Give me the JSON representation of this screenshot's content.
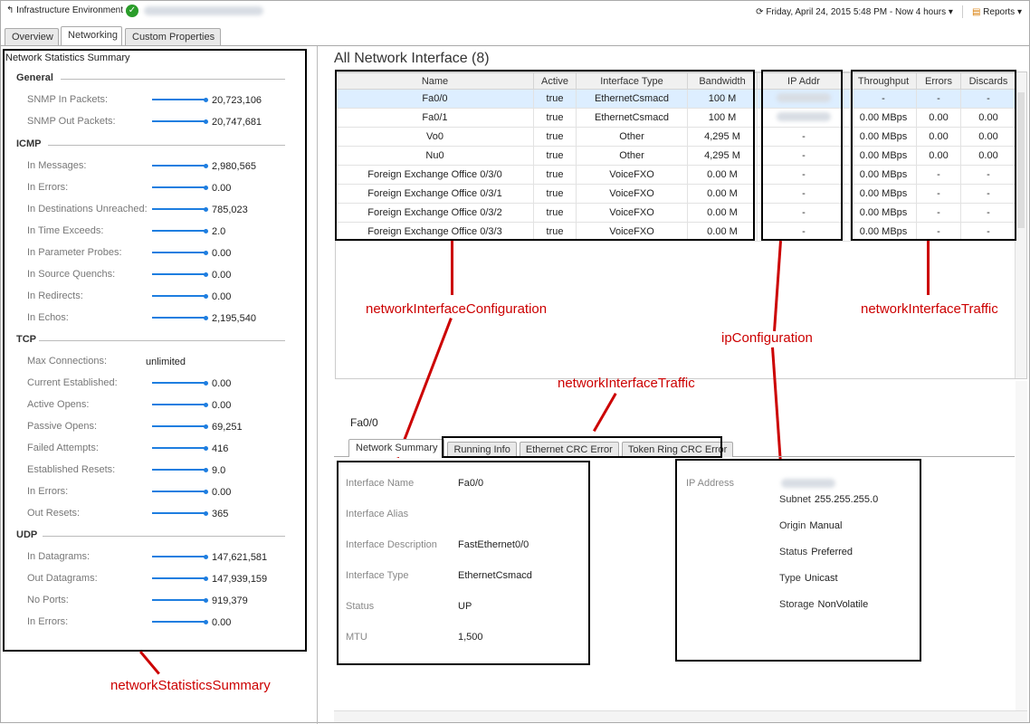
{
  "header": {
    "breadcrumb": "Infrastructure Environment",
    "time": "Friday, April 24, 2015 5:48 PM - Now 4 hours",
    "reports": "Reports"
  },
  "tabs": [
    "Overview",
    "Networking",
    "Custom Properties"
  ],
  "stats": {
    "title": "Network Statistics Summary",
    "sections": [
      {
        "name": "General",
        "rows": [
          [
            "SNMP In Packets:",
            "20,723,106",
            true
          ],
          [
            "SNMP Out Packets:",
            "20,747,681",
            true
          ]
        ]
      },
      {
        "name": "ICMP",
        "rows": [
          [
            "In Messages:",
            "2,980,565",
            true
          ],
          [
            "In Errors:",
            "0.00",
            true
          ],
          [
            "In Destinations Unreached:",
            "785,023",
            true
          ],
          [
            "In Time Exceeds:",
            "2.0",
            true
          ],
          [
            "In Parameter Probes:",
            "0.00",
            true
          ],
          [
            "In Source Quenchs:",
            "0.00",
            true
          ],
          [
            "In Redirects:",
            "0.00",
            true
          ],
          [
            "In Echos:",
            "2,195,540",
            true
          ]
        ]
      },
      {
        "name": "TCP",
        "rows": [
          [
            "Max Connections:",
            "unlimited",
            false
          ],
          [
            "Current Established:",
            "0.00",
            true
          ],
          [
            "Active Opens:",
            "0.00",
            true
          ],
          [
            "Passive Opens:",
            "69,251",
            true
          ],
          [
            "Failed Attempts:",
            "416",
            true
          ],
          [
            "Established Resets:",
            "9.0",
            true
          ],
          [
            "In Errors:",
            "0.00",
            true
          ],
          [
            "Out Resets:",
            "365",
            true
          ]
        ]
      },
      {
        "name": "UDP",
        "rows": [
          [
            "In Datagrams:",
            "147,621,581",
            true
          ],
          [
            "Out Datagrams:",
            "147,939,159",
            true
          ],
          [
            "No Ports:",
            "919,379",
            true
          ],
          [
            "In Errors:",
            "0.00",
            true
          ]
        ]
      }
    ]
  },
  "interfaces": {
    "title": "All Network Interface (8)",
    "columns": [
      "Name",
      "Active",
      "Interface Type",
      "Bandwidth",
      "IP Addr",
      "Throughput",
      "Errors",
      "Discards"
    ],
    "rows": [
      [
        "Fa0/0",
        "true",
        "EthernetCsmacd",
        "100 M",
        "",
        "-",
        "-",
        "-"
      ],
      [
        "Fa0/1",
        "true",
        "EthernetCsmacd",
        "100 M",
        "",
        "0.00 MBps",
        "0.00",
        "0.00"
      ],
      [
        "Vo0",
        "true",
        "Other",
        "4,295 M",
        "-",
        "0.00 MBps",
        "0.00",
        "0.00"
      ],
      [
        "Nu0",
        "true",
        "Other",
        "4,295 M",
        "-",
        "0.00 MBps",
        "0.00",
        "0.00"
      ],
      [
        "Foreign Exchange Office 0/3/0",
        "true",
        "VoiceFXO",
        "0.00 M",
        "-",
        "0.00 MBps",
        "-",
        "-"
      ],
      [
        "Foreign Exchange Office 0/3/1",
        "true",
        "VoiceFXO",
        "0.00 M",
        "-",
        "0.00 MBps",
        "-",
        "-"
      ],
      [
        "Foreign Exchange Office 0/3/2",
        "true",
        "VoiceFXO",
        "0.00 M",
        "-",
        "0.00 MBps",
        "-",
        "-"
      ],
      [
        "Foreign Exchange Office 0/3/3",
        "true",
        "VoiceFXO",
        "0.00 M",
        "-",
        "0.00 MBps",
        "-",
        "-"
      ]
    ]
  },
  "detail": {
    "title": "Fa0/0",
    "tabs": [
      "Network Summary",
      "Running Info",
      "Ethernet CRC Error",
      "Token Ring CRC Error"
    ],
    "summary": [
      [
        "Interface Name",
        "Fa0/0"
      ],
      [
        "Interface Alias",
        ""
      ],
      [
        "Interface Description",
        "FastEthernet0/0"
      ],
      [
        "Interface Type",
        "EthernetCsmacd"
      ],
      [
        "Status",
        "UP"
      ],
      [
        "MTU",
        "1,500"
      ]
    ],
    "ip": {
      "label": "IP Address",
      "rows": [
        [
          "Subnet",
          "255.255.255.0"
        ],
        [
          "Origin",
          "Manual"
        ],
        [
          "Status",
          "Preferred"
        ],
        [
          "Type",
          "Unicast"
        ],
        [
          "Storage",
          "NonVolatile"
        ]
      ]
    }
  },
  "annotations": {
    "stats": "networkStatisticsSummary",
    "config": "networkInterfaceConfiguration",
    "ip": "ipConfiguration",
    "traffic": "networkInterfaceTraffic",
    "traffic2": "networkInterfaceTraffic"
  },
  "colors": {
    "annotation": "#cc0000",
    "accent": "#1e7ee0",
    "selected_row": "#ddeeff"
  }
}
